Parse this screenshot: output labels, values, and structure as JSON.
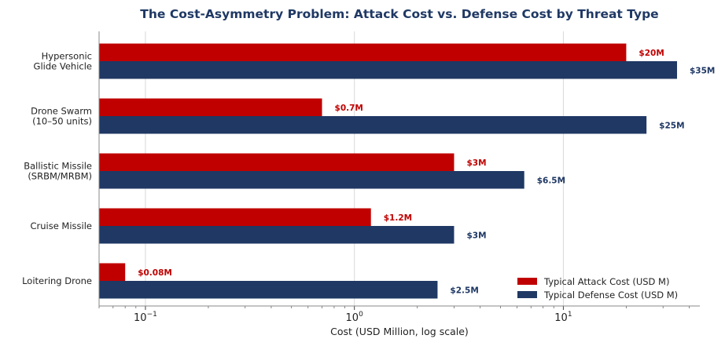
{
  "chart_data": {
    "type": "bar",
    "orientation": "horizontal",
    "title": "The Cost-Asymmetry Problem: Attack Cost vs. Defense Cost by Threat Type",
    "xlabel": "Cost (USD Million, log scale)",
    "ylabel": "",
    "xscale": "log",
    "xlim": [
      0.06,
      45
    ],
    "grid": "x",
    "legend_position": "lower-right",
    "categories": [
      [
        "Hypersonic",
        "Glide Vehicle"
      ],
      [
        "Drone Swarm",
        "(10–50 units)"
      ],
      [
        "Ballistic Missile",
        "(SRBM/MRBM)"
      ],
      [
        "Cruise Missile"
      ],
      [
        "Loitering Drone"
      ]
    ],
    "x_ticks": [
      {
        "value": 0.1,
        "base": "10",
        "exp": "−1"
      },
      {
        "value": 1,
        "base": "10",
        "exp": "0"
      },
      {
        "value": 10,
        "base": "10",
        "exp": "1"
      }
    ],
    "series": [
      {
        "name": "Typical Attack Cost (USD M)",
        "color": "#c00000",
        "values": [
          20,
          0.7,
          3,
          1.2,
          0.08
        ],
        "labels": [
          "$20M",
          "$0.7M",
          "$3M",
          "$1.2M",
          "$0.08M"
        ]
      },
      {
        "name": "Typical Defense Cost (USD M)",
        "color": "#1f3864",
        "values": [
          35,
          25,
          6.5,
          3,
          2.5
        ],
        "labels": [
          "$35M",
          "$25M",
          "$6.5M",
          "$3M",
          "$2.5M"
        ]
      }
    ]
  }
}
